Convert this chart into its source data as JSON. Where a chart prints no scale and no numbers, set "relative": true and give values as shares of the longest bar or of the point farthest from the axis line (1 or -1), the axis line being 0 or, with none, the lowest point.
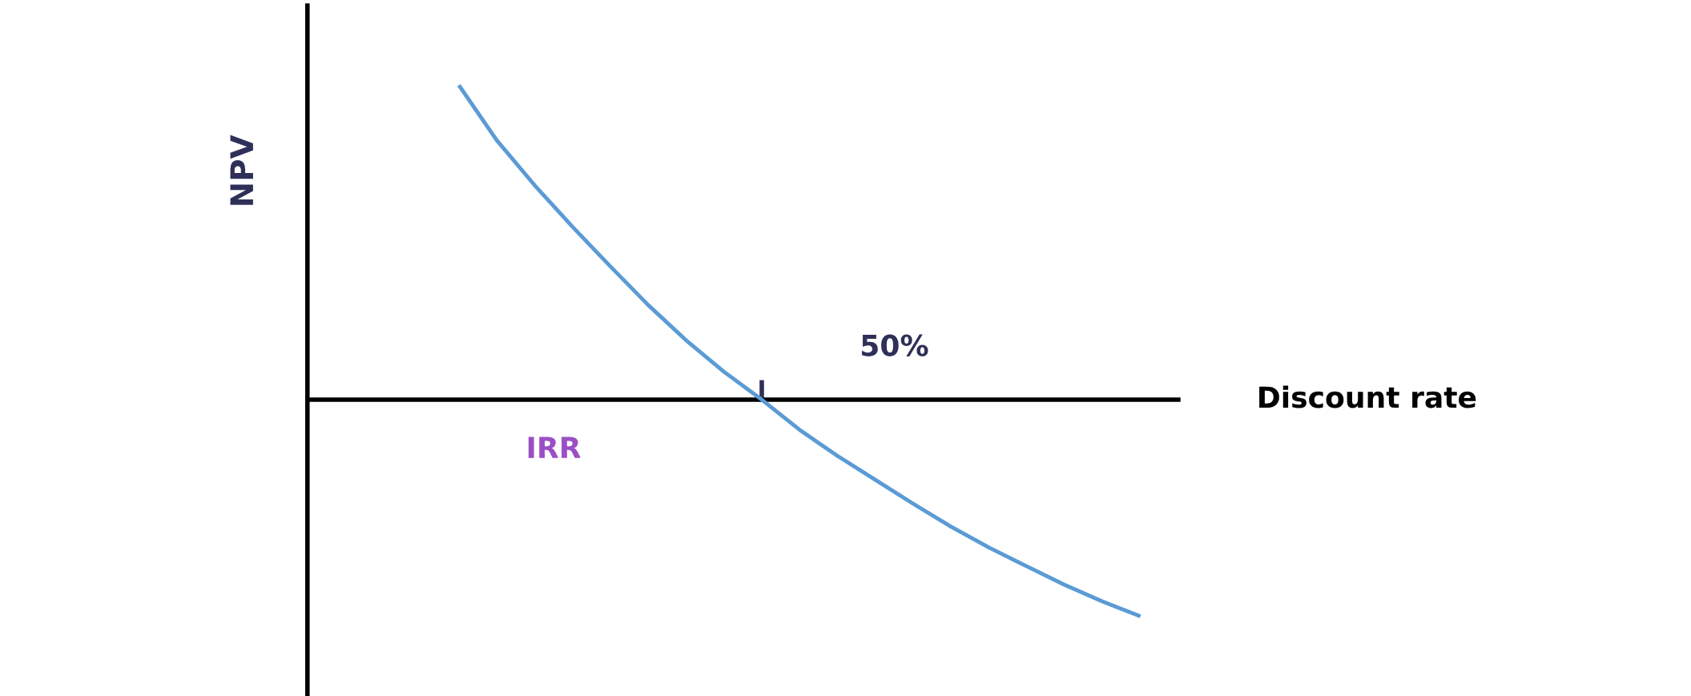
{
  "chart_data": {
    "type": "line",
    "relative": true,
    "xlabel": "Discount rate",
    "ylabel": "NPV",
    "tick_labels": false,
    "legend": false,
    "marker": "none",
    "line_style": "solid",
    "categories": [
      null,
      null,
      null,
      null,
      null,
      null,
      null,
      null,
      null,
      null,
      null,
      null,
      null,
      null,
      null,
      null,
      null,
      null,
      null,
      null,
      null,
      null,
      null,
      null
    ],
    "series": [
      {
        "color": "#5b9bd5",
        "values": [
          null,
          null,
          null,
          null,
          1,
          0.825,
          0.682,
          0.55,
          0.424,
          0.301,
          0.189,
          0.089,
          0,
          -0.096,
          -0.179,
          -0.255,
          -0.331,
          -0.404,
          -0.47,
          -0.53,
          -0.589,
          -0.642,
          -0.689,
          null
        ]
      }
    ],
    "annotations": [
      "50%",
      "IRR"
    ]
  }
}
